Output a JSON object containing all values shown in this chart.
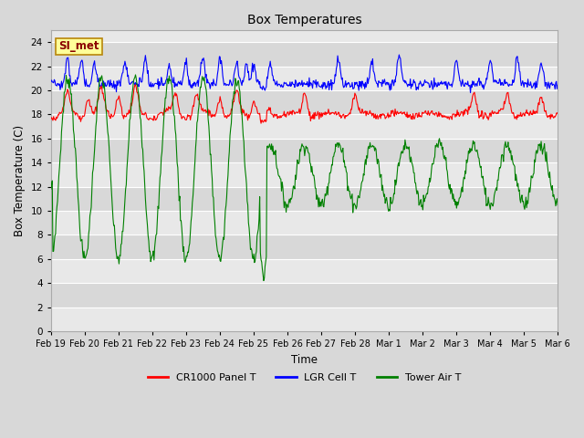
{
  "title": "Box Temperatures",
  "xlabel": "Time",
  "ylabel": "Box Temperature (C)",
  "ylim": [
    0,
    25
  ],
  "yticks": [
    0,
    2,
    4,
    6,
    8,
    10,
    12,
    14,
    16,
    18,
    20,
    22,
    24
  ],
  "xtick_labels": [
    "Feb 19",
    "Feb 20",
    "Feb 21",
    "Feb 22",
    "Feb 23",
    "Feb 24",
    "Feb 25",
    "Feb 26",
    "Feb 27",
    "Feb 28",
    "Mar 1",
    "Mar 2",
    "Mar 3",
    "Mar 4",
    "Mar 5",
    "Mar 6"
  ],
  "bg_color": "#d8d8d8",
  "plot_bg_color_light": "#e8e8e8",
  "plot_bg_color_dark": "#d8d8d8",
  "grid_color": "#ffffff",
  "legend_entries": [
    "CR1000 Panel T",
    "LGR Cell T",
    "Tower Air T"
  ],
  "legend_colors": [
    "red",
    "blue",
    "green"
  ],
  "annotation_text": "SI_met",
  "annotation_color": "#8b0000",
  "annotation_bg": "#ffff99",
  "annotation_border": "#b8860b"
}
